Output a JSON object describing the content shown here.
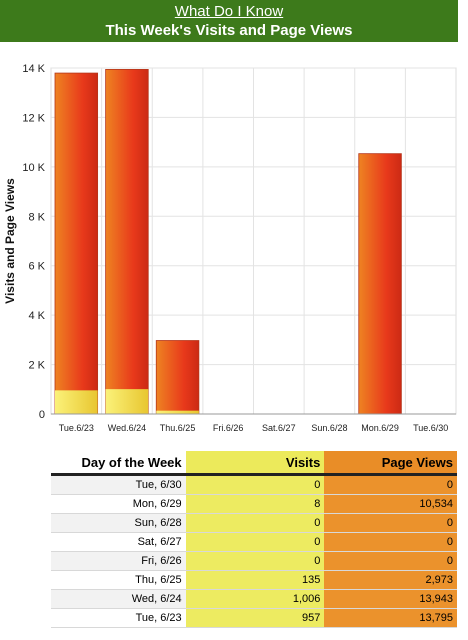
{
  "header": {
    "link_label": "What Do I Know",
    "title": "This Week's Visits and Page Views"
  },
  "colors": {
    "banner": "#3d7a1b",
    "visits": "#f0e54a",
    "page_views": "#e8451c"
  },
  "chart_data": {
    "type": "bar",
    "ylabel": "Visits and Page Views",
    "y_ticks": [
      "0",
      "2 K",
      "4 K",
      "6 K",
      "8 K",
      "10 K",
      "12 K",
      "14 K"
    ],
    "ylim": [
      0,
      14000
    ],
    "categories": [
      "Tue.6/23",
      "Wed.6/24",
      "Thu.6/25",
      "Fri.6/26",
      "Sat.6/27",
      "Sun.6/28",
      "Mon.6/29",
      "Tue.6/30"
    ],
    "series": [
      {
        "name": "Visits",
        "values": [
          957,
          1006,
          135,
          0,
          0,
          0,
          8,
          0
        ]
      },
      {
        "name": "Page Views",
        "values": [
          13795,
          13943,
          2973,
          0,
          0,
          0,
          10534,
          0
        ]
      }
    ],
    "grid": true
  },
  "table": {
    "headers": [
      "Day of the Week",
      "Visits",
      "Page Views"
    ],
    "rows": [
      [
        "Tue, 6/30",
        "0",
        "0"
      ],
      [
        "Mon, 6/29",
        "8",
        "10,534"
      ],
      [
        "Sun, 6/28",
        "0",
        "0"
      ],
      [
        "Sat, 6/27",
        "0",
        "0"
      ],
      [
        "Fri, 6/26",
        "0",
        "0"
      ],
      [
        "Thu, 6/25",
        "135",
        "2,973"
      ],
      [
        "Wed, 6/24",
        "1,006",
        "13,943"
      ],
      [
        "Tue, 6/23",
        "957",
        "13,795"
      ]
    ]
  }
}
